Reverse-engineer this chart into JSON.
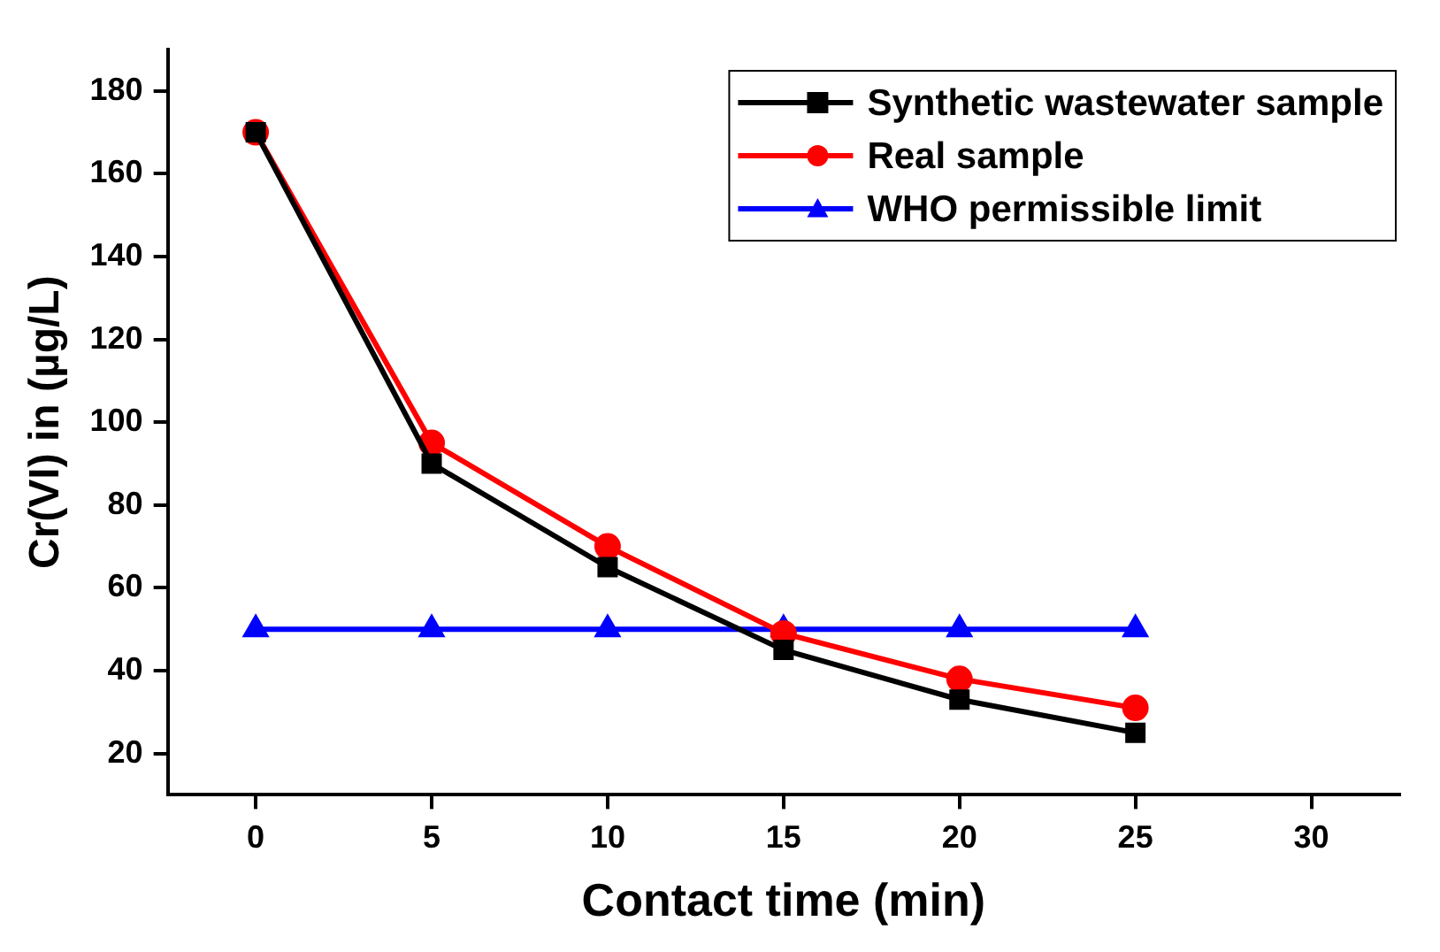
{
  "chart_data": {
    "type": "line",
    "xlabel": "Contact time (min)",
    "ylabel": "Cr(VI) in (µg/L)",
    "x": [
      0,
      5,
      10,
      15,
      20,
      25
    ],
    "series": [
      {
        "name": "Synthetic wastewater sample",
        "color": "#000000",
        "marker": "square",
        "values": [
          170,
          90,
          65,
          45,
          33,
          25
        ]
      },
      {
        "name": "Real sample",
        "color": "#ff0000",
        "marker": "circle",
        "values": [
          170,
          95,
          70,
          49,
          38,
          31
        ]
      },
      {
        "name": "WHO permissible limit",
        "color": "#0000ff",
        "marker": "triangle",
        "values": [
          50,
          50,
          50,
          50,
          50,
          50
        ]
      }
    ],
    "xlim": [
      -2.5,
      32.5
    ],
    "xticks": [
      0,
      5,
      10,
      15,
      20,
      25,
      30
    ],
    "ylim": [
      10,
      190
    ],
    "yticks": [
      20,
      40,
      60,
      80,
      100,
      120,
      140,
      160,
      180
    ],
    "grid": false,
    "legend": "top right",
    "line_style": "solid"
  }
}
